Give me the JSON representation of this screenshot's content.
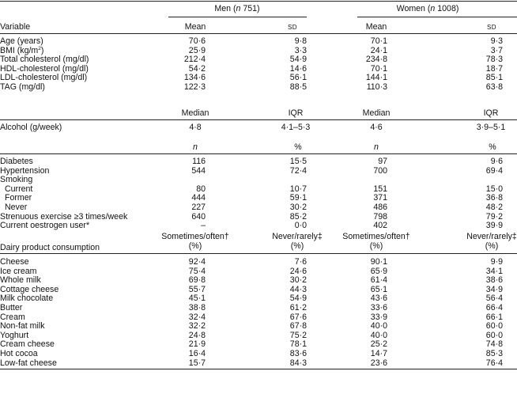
{
  "groups": {
    "men": {
      "prefix": "Men (",
      "n_italic": "n",
      "suffix": " 751)"
    },
    "women": {
      "prefix": "Women (",
      "n_italic": "n",
      "suffix": " 1008)"
    }
  },
  "header": {
    "variable": "Variable",
    "mean": "Mean",
    "sd": "SD"
  },
  "continuous_rows": [
    {
      "label": "Age (years)",
      "men_mean": "70·6",
      "men_sd": "9·8",
      "women_mean": "70·1",
      "women_sd": "9·3"
    },
    {
      "label": "BMI (kg/m",
      "label_sup": "2",
      "label_after": ")",
      "men_mean": "25·9",
      "men_sd": "3·3",
      "women_mean": "24·1",
      "women_sd": "3·7"
    },
    {
      "label": "Total cholesterol (mg/dl)",
      "men_mean": "212·4",
      "men_sd": "54·9",
      "women_mean": "234·8",
      "women_sd": "78·3"
    },
    {
      "label": "HDL-cholesterol (mg/dl)",
      "men_mean": "54·2",
      "men_sd": "14·6",
      "women_mean": "70·1",
      "women_sd": "18·7"
    },
    {
      "label": "LDL-cholesterol (mg/dl)",
      "men_mean": "134·6",
      "men_sd": "56·1",
      "women_mean": "144·1",
      "women_sd": "85·1"
    },
    {
      "label": "TAG (mg/dl)",
      "men_mean": "122·3",
      "men_sd": "88·5",
      "women_mean": "110·3",
      "women_sd": "63·8"
    }
  ],
  "median_header": {
    "median": "Median",
    "iqr": "IQR"
  },
  "alcohol_row": {
    "label": "Alcohol (g/week)",
    "men_median": "4·8",
    "men_iqr": "4·1–5·3",
    "women_median": "4·6",
    "women_iqr": "3·9–5·1"
  },
  "count_header": {
    "n": "n",
    "pct": "%"
  },
  "categorical_rows": [
    {
      "label": "Diabetes",
      "indent": false,
      "men_n": "116",
      "men_pct": "15·5",
      "women_n": "97",
      "women_pct": "9·6"
    },
    {
      "label": "Hypertension",
      "indent": false,
      "men_n": "544",
      "men_pct": "72·4",
      "women_n": "700",
      "women_pct": "69·4"
    },
    {
      "label": "Smoking",
      "indent": false,
      "men_n": "",
      "men_pct": "",
      "women_n": "",
      "women_pct": ""
    },
    {
      "label": "Current",
      "indent": true,
      "men_n": "80",
      "men_pct": "10·7",
      "women_n": "151",
      "women_pct": "15·0"
    },
    {
      "label": "Former",
      "indent": true,
      "men_n": "444",
      "men_pct": "59·1",
      "women_n": "371",
      "women_pct": "36·8"
    },
    {
      "label": "Never",
      "indent": true,
      "men_n": "227",
      "men_pct": "30·2",
      "women_n": "486",
      "women_pct": "48·2"
    },
    {
      "label": "Strenuous exercise ≥3 times/week",
      "indent": false,
      "men_n": "640",
      "men_pct": "85·2",
      "women_n": "798",
      "women_pct": "79·2"
    },
    {
      "label": "Current oestrogen user*",
      "indent": false,
      "men_n": "–",
      "men_pct": "0·0",
      "women_n": "402",
      "women_pct": "39·9"
    }
  ],
  "dairy_header": {
    "label": "Dairy product consumption",
    "sometimes_line1": "Sometimes/often†",
    "never_line1": "Never/rarely‡",
    "pct_line2": "(%)"
  },
  "dairy_rows": [
    {
      "label": "Cheese",
      "men_some": "92·4",
      "men_never": "7·6",
      "women_some": "90·1",
      "women_never": "9·9"
    },
    {
      "label": "Ice cream",
      "men_some": "75·4",
      "men_never": "24·6",
      "women_some": "65·9",
      "women_never": "34·1"
    },
    {
      "label": "Whole milk",
      "men_some": "69·8",
      "men_never": "30·2",
      "women_some": "61·4",
      "women_never": "38·6"
    },
    {
      "label": "Cottage cheese",
      "men_some": "55·7",
      "men_never": "44·3",
      "women_some": "65·1",
      "women_never": "34·9"
    },
    {
      "label": "Milk chocolate",
      "men_some": "45·1",
      "men_never": "54·9",
      "women_some": "43·6",
      "women_never": "56·4"
    },
    {
      "label": "Butter",
      "men_some": "38·8",
      "men_never": "61·2",
      "women_some": "33·6",
      "women_never": "66·4"
    },
    {
      "label": "Cream",
      "men_some": "32·4",
      "men_never": "67·6",
      "women_some": "33·9",
      "women_never": "66·1"
    },
    {
      "label": "Non-fat milk",
      "men_some": "32·2",
      "men_never": "67·8",
      "women_some": "40·0",
      "women_never": "60·0"
    },
    {
      "label": "Yoghurt",
      "men_some": "24·8",
      "men_never": "75·2",
      "women_some": "40·0",
      "women_never": "60·0"
    },
    {
      "label": "Cream cheese",
      "men_some": "21·9",
      "men_never": "78·1",
      "women_some": "25·2",
      "women_never": "74·8"
    },
    {
      "label": "Hot cocoa",
      "men_some": "16·4",
      "men_never": "83·6",
      "women_some": "14·7",
      "women_never": "85·3"
    },
    {
      "label": "Low-fat cheese",
      "men_some": "15·7",
      "men_never": "84·3",
      "women_some": "23·6",
      "women_never": "76·4"
    }
  ]
}
